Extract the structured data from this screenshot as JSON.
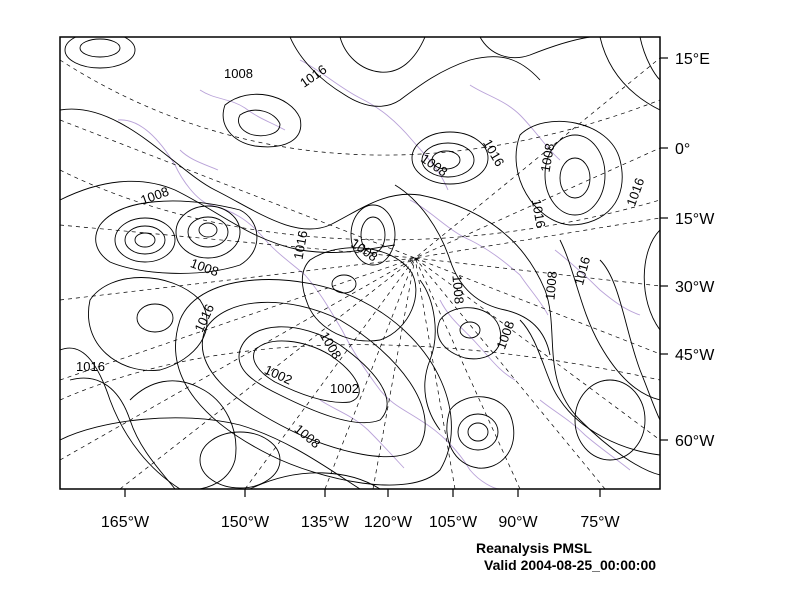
{
  "map": {
    "right_ticks": [
      {
        "label": "15°E"
      },
      {
        "label": "0°"
      },
      {
        "label": "15°W"
      },
      {
        "label": "30°W"
      },
      {
        "label": "45°W"
      },
      {
        "label": "60°W"
      }
    ],
    "bottom_ticks": [
      {
        "label": "165°W"
      },
      {
        "label": "150°W"
      },
      {
        "label": "135°W"
      },
      {
        "label": "120°W"
      },
      {
        "label": "105°W"
      },
      {
        "label": "90°W"
      },
      {
        "label": "75°W"
      }
    ],
    "contour_labels": [
      {
        "text": "1008"
      },
      {
        "text": "1016"
      },
      {
        "text": "1008"
      },
      {
        "text": "1016"
      },
      {
        "text": "1008"
      },
      {
        "text": "1016"
      },
      {
        "text": "1016"
      },
      {
        "text": "1008"
      },
      {
        "text": "1016"
      },
      {
        "text": "1008"
      },
      {
        "text": "1008"
      },
      {
        "text": "1008"
      },
      {
        "text": "1016"
      },
      {
        "text": "1016"
      },
      {
        "text": "1008"
      },
      {
        "text": "1008"
      },
      {
        "text": "1008"
      },
      {
        "text": "1016"
      },
      {
        "text": "1002"
      },
      {
        "text": "1002"
      },
      {
        "text": "1008"
      }
    ],
    "colors": {
      "contour": "#000000",
      "coastline": "#b9a2d8",
      "graticule": "#000000",
      "frame": "#000000"
    }
  },
  "caption": {
    "title": "Reanalysis PMSL",
    "valid": "Valid 2004-08-25_00:00:00"
  }
}
